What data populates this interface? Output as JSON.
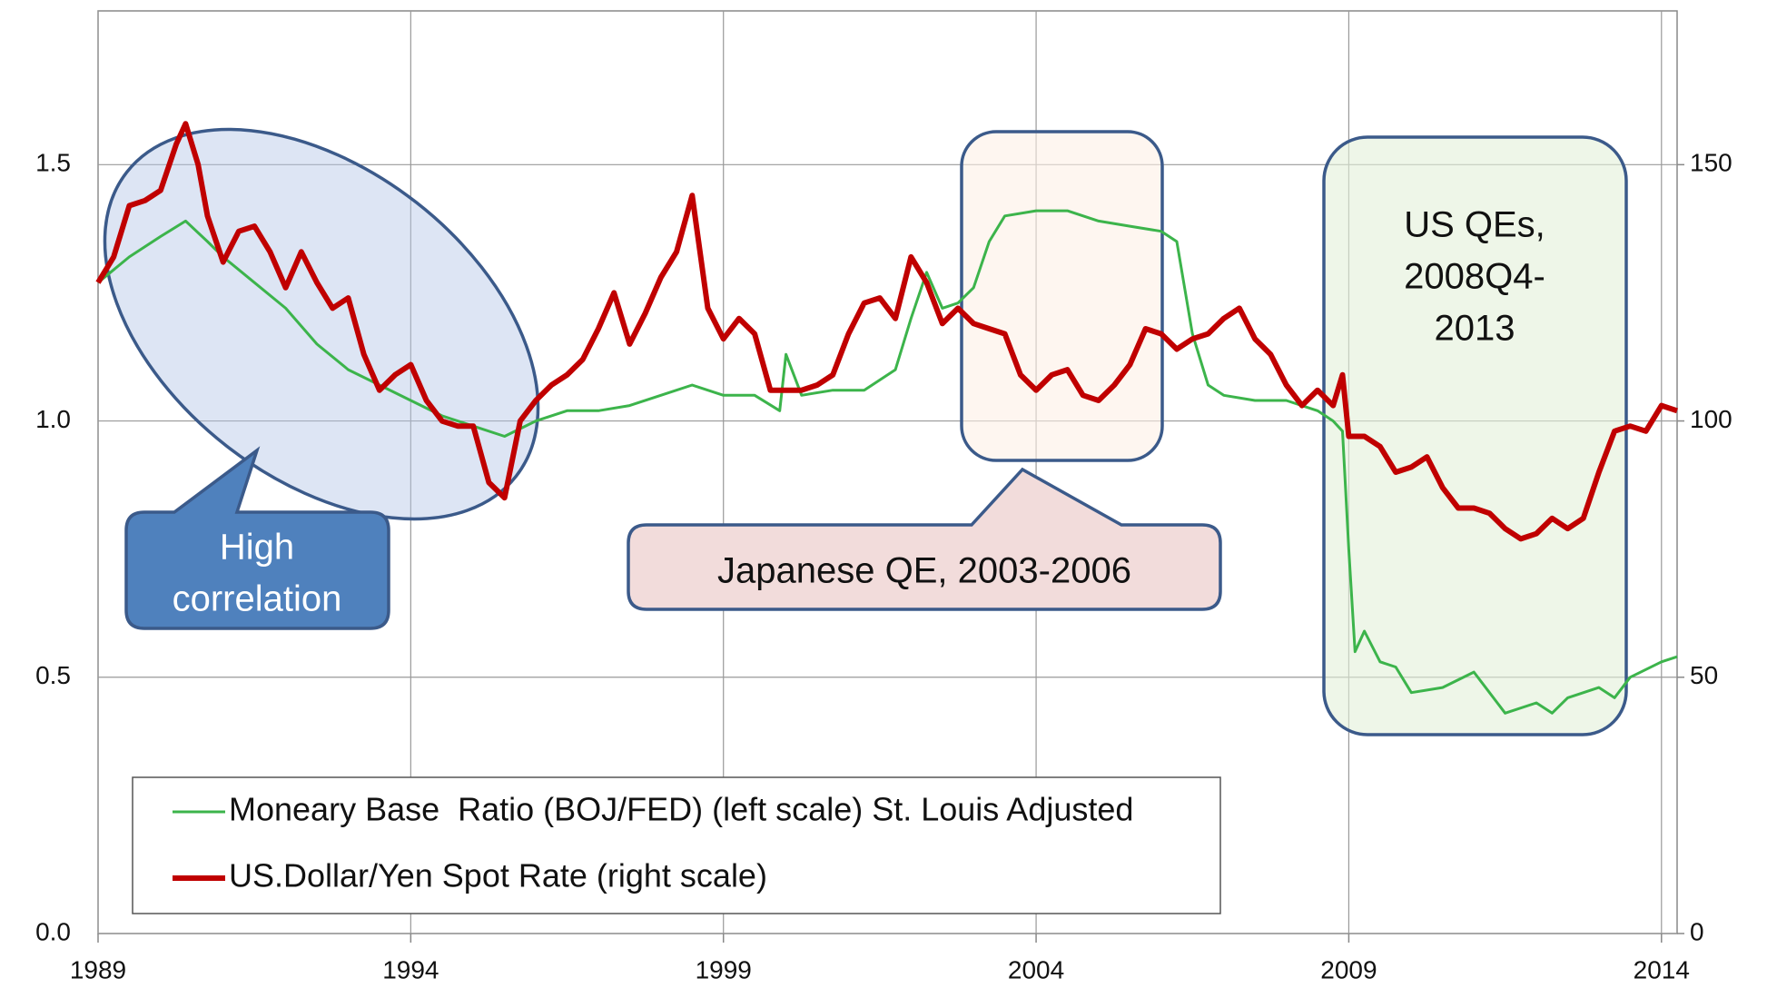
{
  "chart_data": {
    "type": "line",
    "xlim": [
      1989,
      2014.25
    ],
    "xticks": [
      1989,
      1994,
      1999,
      2004,
      2009,
      2014
    ],
    "ylim": [
      0,
      1.8
    ],
    "yticks": [
      {
        "value": 0,
        "label": "0.0"
      },
      0.5,
      {
        "value": 1,
        "label": "1.0"
      },
      1.5
    ],
    "y2lim": [
      0,
      180
    ],
    "y2ticks": [
      0,
      50,
      100,
      150
    ],
    "grid": true,
    "series": [
      {
        "name": "Moneary Base  Ratio (BOJ/FED) (left scale) St. Louis Adjusted",
        "color": "#3cb44b",
        "axis": "y",
        "x": [
          1989.0,
          1989.5,
          1990.0,
          1990.4,
          1990.75,
          1991.0,
          1991.5,
          1992.0,
          1992.5,
          1993.0,
          1993.5,
          1994.0,
          1994.5,
          1995.0,
          1995.5,
          1996.0,
          1996.5,
          1997.0,
          1997.5,
          1998.0,
          1998.5,
          1999.0,
          1999.5,
          1999.9,
          2000.0,
          2000.25,
          2000.75,
          2001.25,
          2001.75,
          2002.0,
          2002.25,
          2002.5,
          2002.75,
          2003.0,
          2003.25,
          2003.5,
          2004.0,
          2004.5,
          2005.0,
          2005.5,
          2006.0,
          2006.25,
          2006.5,
          2006.75,
          2007.0,
          2007.5,
          2008.0,
          2008.5,
          2008.75,
          2008.9,
          2009.0,
          2009.1,
          2009.25,
          2009.5,
          2009.75,
          2010.0,
          2010.5,
          2011.0,
          2011.25,
          2011.5,
          2012.0,
          2012.25,
          2012.5,
          2013.0,
          2013.25,
          2013.5,
          2014.0,
          2014.25
        ],
        "values": [
          1.27,
          1.32,
          1.36,
          1.39,
          1.35,
          1.32,
          1.27,
          1.22,
          1.15,
          1.1,
          1.07,
          1.04,
          1.01,
          0.99,
          0.97,
          1.0,
          1.02,
          1.02,
          1.03,
          1.05,
          1.07,
          1.05,
          1.05,
          1.02,
          1.13,
          1.05,
          1.06,
          1.06,
          1.1,
          1.2,
          1.29,
          1.22,
          1.23,
          1.26,
          1.35,
          1.4,
          1.41,
          1.41,
          1.39,
          1.38,
          1.37,
          1.35,
          1.17,
          1.07,
          1.05,
          1.04,
          1.04,
          1.02,
          1.0,
          0.98,
          0.75,
          0.55,
          0.59,
          0.53,
          0.52,
          0.47,
          0.48,
          0.51,
          0.47,
          0.43,
          0.45,
          0.43,
          0.46,
          0.48,
          0.46,
          0.5,
          0.53,
          0.54
        ]
      },
      {
        "name": "US.Dollar/Yen Spot Rate (right scale)",
        "color": "#c00000",
        "axis": "y2",
        "x": [
          1989.0,
          1989.25,
          1989.5,
          1989.75,
          1990.0,
          1990.25,
          1990.4,
          1990.6,
          1990.75,
          1991.0,
          1991.25,
          1991.5,
          1991.75,
          1992.0,
          1992.25,
          1992.5,
          1992.75,
          1993.0,
          1993.25,
          1993.5,
          1993.75,
          1994.0,
          1994.25,
          1994.5,
          1994.75,
          1995.0,
          1995.25,
          1995.5,
          1995.75,
          1996.0,
          1996.25,
          1996.5,
          1996.75,
          1997.0,
          1997.25,
          1997.5,
          1997.75,
          1998.0,
          1998.25,
          1998.5,
          1998.75,
          1999.0,
          1999.25,
          1999.5,
          1999.75,
          2000.0,
          2000.25,
          2000.5,
          2000.75,
          2001.0,
          2001.25,
          2001.5,
          2001.75,
          2002.0,
          2002.25,
          2002.5,
          2002.75,
          2003.0,
          2003.25,
          2003.5,
          2003.75,
          2004.0,
          2004.25,
          2004.5,
          2004.75,
          2005.0,
          2005.25,
          2005.5,
          2005.75,
          2006.0,
          2006.25,
          2006.5,
          2006.75,
          2007.0,
          2007.25,
          2007.5,
          2007.75,
          2008.0,
          2008.25,
          2008.5,
          2008.75,
          2008.9,
          2009.0,
          2009.25,
          2009.5,
          2009.75,
          2010.0,
          2010.25,
          2010.5,
          2010.75,
          2011.0,
          2011.25,
          2011.5,
          2011.75,
          2012.0,
          2012.25,
          2012.5,
          2012.75,
          2013.0,
          2013.25,
          2013.5,
          2013.75,
          2014.0,
          2014.25
        ],
        "values": [
          127,
          132,
          142,
          143,
          145,
          154,
          158,
          150,
          140,
          131,
          137,
          138,
          133,
          126,
          133,
          127,
          122,
          124,
          113,
          106,
          109,
          111,
          104,
          100,
          99,
          99,
          88,
          85,
          100,
          104,
          107,
          109,
          112,
          118,
          125,
          115,
          121,
          128,
          133,
          144,
          122,
          116,
          120,
          117,
          106,
          106,
          106,
          107,
          109,
          117,
          123,
          124,
          120,
          132,
          127,
          119,
          122,
          119,
          118,
          117,
          109,
          106,
          109,
          110,
          105,
          104,
          107,
          111,
          118,
          117,
          114,
          116,
          117,
          120,
          122,
          116,
          113,
          107,
          103,
          106,
          103,
          109,
          97,
          97,
          95,
          90,
          91,
          93,
          87,
          83,
          83,
          82,
          79,
          77,
          78,
          81,
          79,
          81,
          90,
          98,
          99,
          98,
          103,
          102
        ]
      }
    ],
    "legend": "lower left",
    "annotations": [
      {
        "lines": [
          "High",
          "correlation"
        ]
      },
      {
        "lines": [
          "Japanese QE, 2003-2006"
        ]
      },
      {
        "lines": [
          "US QEs,",
          "2008Q4-",
          "2013"
        ]
      }
    ]
  }
}
